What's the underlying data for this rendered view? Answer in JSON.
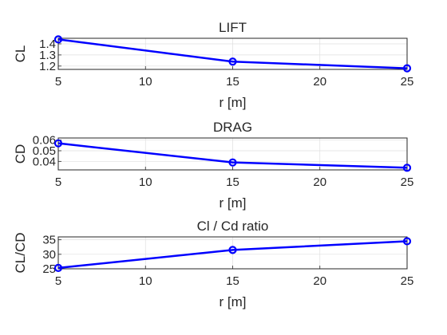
{
  "chart_data": [
    {
      "type": "line",
      "title": "LIFT",
      "xlabel": "r [m]",
      "ylabel": "CL",
      "xlim": [
        5,
        25
      ],
      "ylim": [
        1.17,
        1.45
      ],
      "x_ticks": [
        5,
        10,
        15,
        20,
        25
      ],
      "y_ticks": [
        1.2,
        1.3,
        1.4
      ],
      "grid": true,
      "color": "#0000ff",
      "series": [
        {
          "x": [
            5,
            15,
            25
          ],
          "values": [
            1.44,
            1.24,
            1.18
          ]
        }
      ]
    },
    {
      "type": "line",
      "title": "DRAG",
      "xlabel": "r [m]",
      "ylabel": "CD",
      "xlim": [
        5,
        25
      ],
      "ylim": [
        0.032,
        0.062
      ],
      "x_ticks": [
        5,
        10,
        15,
        20,
        25
      ],
      "y_ticks": [
        0.04,
        0.05,
        0.06
      ],
      "grid": true,
      "color": "#0000ff",
      "series": [
        {
          "x": [
            5,
            15,
            25
          ],
          "values": [
            0.057,
            0.039,
            0.034
          ]
        }
      ]
    },
    {
      "type": "line",
      "title": "Cl / Cd ratio",
      "xlabel": "r [m]",
      "ylabel": "CL/CD",
      "xlim": [
        5,
        25
      ],
      "ylim": [
        25,
        36
      ],
      "x_ticks": [
        5,
        10,
        15,
        20,
        25
      ],
      "y_ticks": [
        25,
        30,
        35
      ],
      "grid": true,
      "color": "#0000ff",
      "series": [
        {
          "x": [
            5,
            15,
            25
          ],
          "values": [
            25.3,
            31.5,
            34.5
          ]
        }
      ]
    }
  ]
}
